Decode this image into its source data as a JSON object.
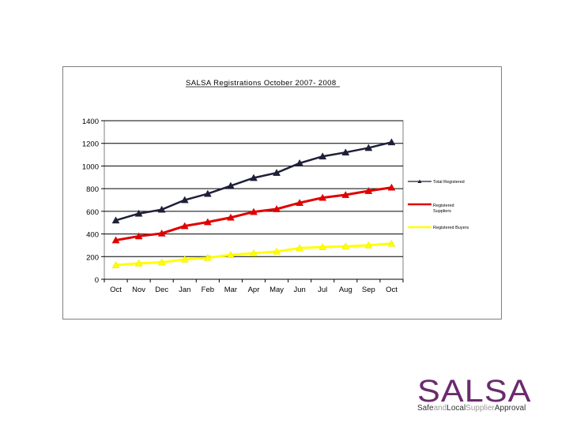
{
  "colors": {
    "total": "#1f1f3a",
    "suppliers": "#e00000",
    "buyers": "#ffff00",
    "logo": "#6b2a6e"
  },
  "chart_data": {
    "type": "line",
    "title": "SALSA Registrations October 2007- 2008",
    "categories": [
      "Oct",
      "Nov",
      "Dec",
      "Jan",
      "Feb",
      "Mar",
      "Apr",
      "May",
      "Jun",
      "Jul",
      "Aug",
      "Sep",
      "Oct"
    ],
    "ylim": [
      0,
      1400
    ],
    "yticks": [
      0,
      200,
      400,
      600,
      800,
      1000,
      1200,
      1400
    ],
    "grid": true,
    "legend_position": "right",
    "series": [
      {
        "name": "Total Registered",
        "values": [
          520,
          580,
          615,
          700,
          755,
          825,
          895,
          940,
          1025,
          1085,
          1120,
          1160,
          1210
        ]
      },
      {
        "name": "Registered Suppliers",
        "values": [
          345,
          380,
          405,
          470,
          505,
          545,
          595,
          620,
          675,
          720,
          745,
          780,
          810
        ]
      },
      {
        "name": "Registered Buyers",
        "values": [
          125,
          140,
          150,
          175,
          190,
          215,
          230,
          245,
          275,
          285,
          290,
          300,
          315
        ]
      }
    ]
  },
  "logo": {
    "main": "SALSA",
    "sub": [
      {
        "text": "Safe",
        "style": "hl"
      },
      {
        "text": "and",
        "style": "lo"
      },
      {
        "text": "Local",
        "style": "hl"
      },
      {
        "text": "Supplier",
        "style": "lo"
      },
      {
        "text": "Approval",
        "style": "hl"
      }
    ]
  }
}
